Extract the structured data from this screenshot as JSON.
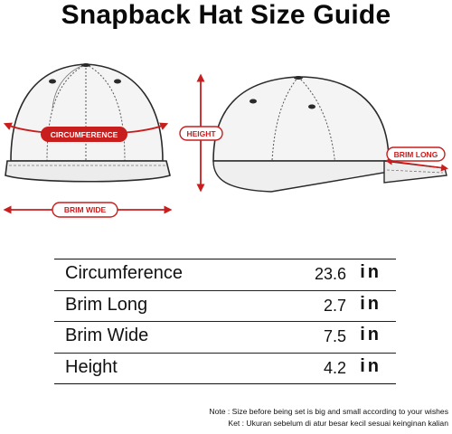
{
  "title": "Snapback Hat Size Guide",
  "labels": {
    "circumference": "CIRCUMFERENCE",
    "brim_wide": "BRIM WIDE",
    "height": "HEIGHT",
    "brim_long": "BRIM LONG"
  },
  "table": {
    "rows": [
      {
        "name": "Circumference",
        "value": "23.6",
        "unit": "in"
      },
      {
        "name": "Brim Long",
        "value": "2.7",
        "unit": "in"
      },
      {
        "name": "Brim Wide",
        "value": "7.5",
        "unit": "in"
      },
      {
        "name": "Height",
        "value": "4.2",
        "unit": "in"
      }
    ]
  },
  "notes": {
    "line1": "Note : Size before being set is big and small according to your wishes",
    "line2": "Ket : Ukuran sebelum di atur besar kecil sesuai keinginan kalian"
  },
  "colors": {
    "accent": "#c81e1e",
    "hat_fill": "#f4f4f4",
    "outline": "#2a2a2a"
  }
}
